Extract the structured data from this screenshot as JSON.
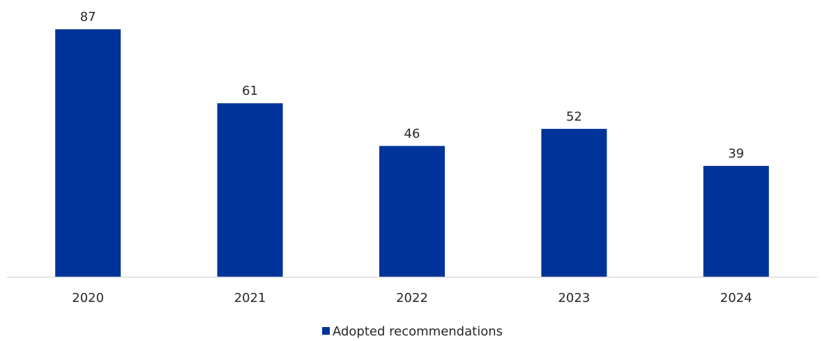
{
  "chart_data": {
    "type": "bar",
    "categories": [
      "2020",
      "2021",
      "2022",
      "2023",
      "2024"
    ],
    "series": [
      {
        "name": "Adopted recommendations",
        "values": [
          87,
          61,
          46,
          52,
          39
        ]
      }
    ],
    "data_labels": [
      "87",
      "61",
      "46",
      "52",
      "39"
    ],
    "ylim": [
      0,
      87
    ],
    "grid": false,
    "legend_position": "bottom",
    "colors": {
      "bar": "#003399",
      "axis": "#d9d9d9"
    }
  }
}
